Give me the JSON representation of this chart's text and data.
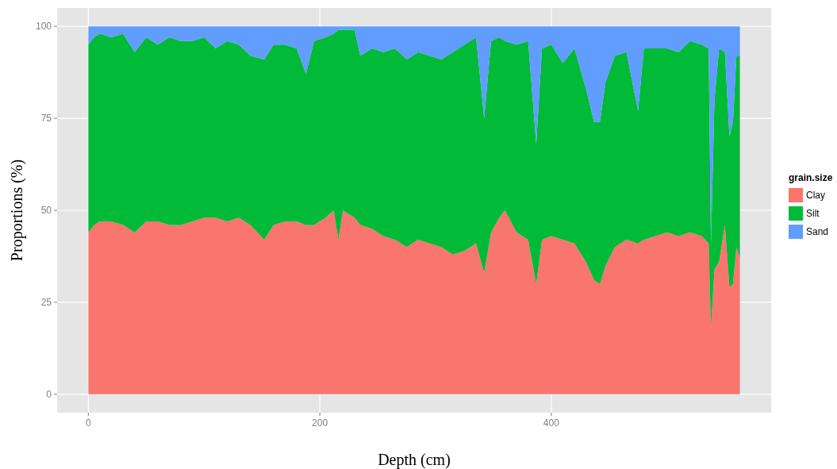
{
  "chart_data": {
    "type": "area",
    "stacked": true,
    "xlabel": "Depth (cm)",
    "ylabel": "Proportions (%)",
    "legend_title": "grain.size",
    "legend": "right",
    "grid": true,
    "x": [
      0,
      5,
      10,
      20,
      30,
      40,
      50,
      60,
      70,
      80,
      90,
      100,
      110,
      120,
      130,
      140,
      152,
      160,
      170,
      180,
      188,
      195,
      205,
      212,
      216,
      220,
      230,
      235,
      245,
      255,
      265,
      275,
      285,
      295,
      305,
      315,
      325,
      335,
      342,
      348,
      355,
      360,
      370,
      380,
      387,
      392,
      400,
      410,
      420,
      430,
      437,
      442,
      447,
      455,
      465,
      475,
      480,
      490,
      500,
      510,
      520,
      530,
      536,
      538,
      541,
      545,
      550,
      554,
      557,
      560,
      563
    ],
    "xlim": [
      -27,
      590
    ],
    "xticks": [
      0,
      200,
      400
    ],
    "ylim": [
      -5,
      105
    ],
    "yticks": [
      0,
      25,
      50,
      75,
      100
    ],
    "series": [
      {
        "name": "Clay",
        "color": "#f8766d",
        "values": [
          44,
          46,
          47,
          47,
          46,
          44,
          47,
          47,
          46,
          46,
          47,
          48,
          48,
          47,
          48,
          46,
          42,
          46,
          47,
          47,
          46,
          46,
          48,
          50,
          42,
          50,
          48,
          46,
          45,
          43,
          42,
          40,
          42,
          41,
          40,
          38,
          39,
          41,
          33,
          44,
          48,
          50,
          44,
          42,
          30,
          42,
          43,
          42,
          41,
          36,
          31,
          30,
          35,
          40,
          42,
          41,
          42,
          43,
          44,
          43,
          44,
          43,
          41,
          18,
          34,
          36,
          46,
          29,
          30,
          40,
          37
        ]
      },
      {
        "name": "Silt",
        "color": "#00ba38",
        "values": [
          51,
          51,
          51,
          50,
          52,
          49,
          50,
          48,
          51,
          50,
          49,
          49,
          46,
          49,
          47,
          46,
          49,
          49,
          48,
          47,
          41,
          50,
          49,
          48,
          57,
          49,
          51,
          46,
          49,
          50,
          52,
          51,
          51,
          51,
          51,
          55,
          56,
          56,
          42,
          52,
          49,
          46,
          51,
          54,
          38,
          52,
          52,
          48,
          53,
          47,
          43,
          44,
          50,
          52,
          51,
          36,
          52,
          51,
          50,
          50,
          52,
          52,
          53,
          23,
          46,
          58,
          47,
          41,
          44,
          52,
          55
        ]
      },
      {
        "name": "Sand",
        "color": "#619cff",
        "values": [
          5,
          3,
          2,
          3,
          2,
          7,
          3,
          5,
          3,
          4,
          4,
          3,
          6,
          4,
          5,
          8,
          9,
          5,
          5,
          6,
          13,
          4,
          3,
          2,
          1,
          1,
          1,
          8,
          6,
          7,
          6,
          9,
          7,
          8,
          9,
          7,
          5,
          3,
          25,
          4,
          3,
          4,
          5,
          4,
          32,
          6,
          5,
          10,
          6,
          17,
          26,
          26,
          15,
          8,
          7,
          23,
          6,
          6,
          6,
          7,
          4,
          5,
          6,
          59,
          20,
          6,
          7,
          30,
          26,
          8,
          8
        ]
      }
    ]
  }
}
